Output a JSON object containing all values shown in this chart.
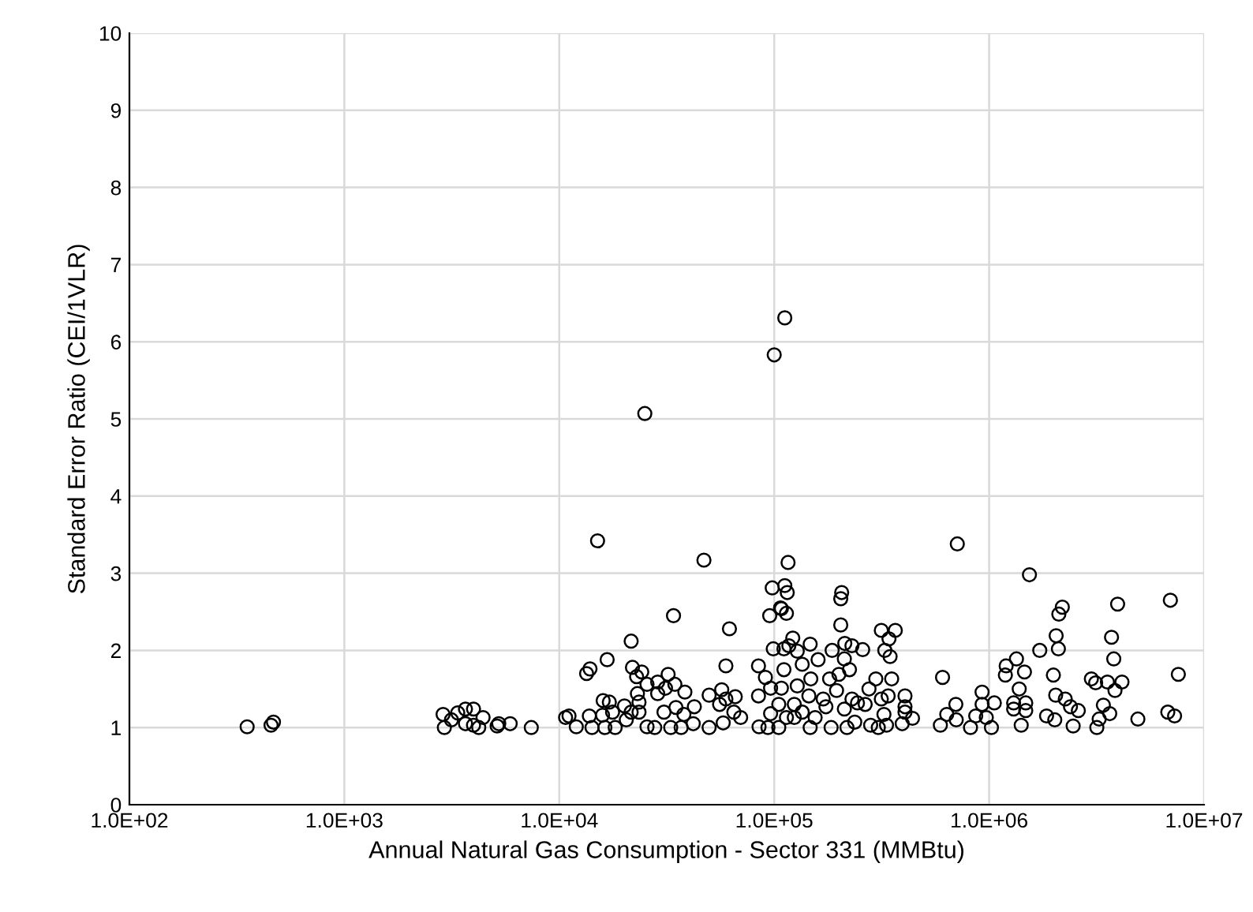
{
  "chart_data": {
    "type": "scatter",
    "xlabel": "Annual Natural Gas Consumption - Sector 331 (MMBtu)",
    "ylabel": "Standard Error Ratio (CEI/1VLR)",
    "log": "x",
    "xlim": [
      100,
      10000000
    ],
    "xticks": [
      {
        "value": 100,
        "label": "1.0E+02"
      },
      {
        "value": 1000,
        "label": "1.0E+03"
      },
      {
        "value": 10000,
        "label": "1.0E+04"
      },
      {
        "value": 100000,
        "label": "1.0E+05"
      },
      {
        "value": 1000000,
        "label": "1.0E+06"
      },
      {
        "value": 10000000,
        "label": "1.0E+07"
      }
    ],
    "ylim": [
      0,
      10
    ],
    "yticks": [
      0,
      1,
      2,
      3,
      4,
      5,
      6,
      7,
      8,
      9,
      10
    ],
    "grid": true,
    "marker": "circle",
    "series": [
      {
        "color": "#000000",
        "x": [
          353,
          456,
          468,
          2880,
          2920,
          3150,
          3370,
          3660,
          3990,
          3660,
          3990,
          4220,
          4420,
          5140,
          5230,
          5910,
          7410,
          10700,
          15070,
          47100,
          34000,
          61900,
          21600,
          16700,
          13400,
          13900,
          21900,
          24200,
          32100,
          59600,
          84500,
          22900,
          25600,
          28700,
          34500,
          31200,
          38400,
          28700,
          23100,
          57000,
          49800,
          65900,
          55700,
          59600,
          42500,
          34900,
          16000,
          17100,
          20100,
          23500,
          23500,
          21600,
          17700,
          11100,
          13800,
          15900,
          30700,
          38000,
          64900,
          69800,
          57900,
          49800,
          12000,
          14200,
          16300,
          18200,
          25600,
          27800,
          33000,
          36900,
          42000,
          20500,
          84500,
          91000,
          96200,
          85000,
          93500,
          96200,
          97900,
          95300,
          107000,
          99000,
          111000,
          116000,
          112000,
          115000,
          108000,
          114000,
          206000,
          204000,
          204000,
          711000,
          315000,
          366000,
          342000,
          327000,
          346000,
          122000,
          117000,
          147000,
          128000,
          186000,
          213000,
          230000,
          258000,
          212000,
          224000,
          160000,
          135000,
          111000,
          148000,
          181000,
          200000,
          297000,
          352000,
          128000,
          108000,
          169000,
          195000,
          230000,
          276000,
          315000,
          339000,
          406000,
          145000,
          124000,
          105000,
          174000,
          212000,
          244000,
          265000,
          406000,
          406000,
          324000,
          155000,
          135000,
          114000,
          105000,
          124000,
          147000,
          184000,
          218000,
          237000,
          281000,
          305000,
          333000,
          394000,
          440000,
          607000,
          593000,
          700000,
          635000,
          703000,
          819000,
          866000,
          927000,
          927000,
          1057000,
          970000,
          1025000,
          1540000,
          2190000,
          2110000,
          3960000,
          6970000,
          2050000,
          2100000,
          1720000,
          3710000,
          3800000,
          1340000,
          1200000,
          1460000,
          7590000,
          1990000,
          2990000,
          3130000,
          3550000,
          4150000,
          3850000,
          1380000,
          2040000,
          2260000,
          2390000,
          2600000,
          1300000,
          1480000,
          1300000,
          1480000,
          3400000,
          3640000,
          3250000,
          1850000,
          2020000,
          1410000,
          2460000,
          3170000,
          4920000,
          6780000,
          7290000,
          1190000,
          112000,
          100000,
          25000
        ],
        "values": [
          1.01,
          1.03,
          1.07,
          1.17,
          1.0,
          1.1,
          1.19,
          1.24,
          1.24,
          1.05,
          1.03,
          1.0,
          1.13,
          1.02,
          1.05,
          1.05,
          1.0,
          1.13,
          3.42,
          3.17,
          2.45,
          2.28,
          2.12,
          1.88,
          1.7,
          1.76,
          1.78,
          1.72,
          1.69,
          1.8,
          1.8,
          1.66,
          1.56,
          1.59,
          1.56,
          1.51,
          1.46,
          1.44,
          1.44,
          1.49,
          1.42,
          1.4,
          1.3,
          1.37,
          1.27,
          1.26,
          1.35,
          1.33,
          1.28,
          1.33,
          1.2,
          1.2,
          1.2,
          1.15,
          1.15,
          1.16,
          1.2,
          1.17,
          1.2,
          1.13,
          1.06,
          1.0,
          1.01,
          1.0,
          1.0,
          1.0,
          1.01,
          1.0,
          1.0,
          1.0,
          1.05,
          1.1,
          1.41,
          1.65,
          1.51,
          1.01,
          1.0,
          1.18,
          2.81,
          2.45,
          2.55,
          2.02,
          2.02,
          3.14,
          2.84,
          2.75,
          2.54,
          2.48,
          2.75,
          2.67,
          2.33,
          3.38,
          2.26,
          2.26,
          2.15,
          2.0,
          1.92,
          2.16,
          2.06,
          2.08,
          1.99,
          2.0,
          2.09,
          2.06,
          2.01,
          1.89,
          1.75,
          1.88,
          1.82,
          1.75,
          1.63,
          1.63,
          1.69,
          1.63,
          1.63,
          1.54,
          1.51,
          1.37,
          1.48,
          1.37,
          1.5,
          1.37,
          1.41,
          1.41,
          1.41,
          1.3,
          1.3,
          1.27,
          1.24,
          1.32,
          1.3,
          1.27,
          1.2,
          1.17,
          1.13,
          1.2,
          1.13,
          1.0,
          1.13,
          1.0,
          1.0,
          1.0,
          1.07,
          1.03,
          1.0,
          1.03,
          1.05,
          1.12,
          1.65,
          1.03,
          1.3,
          1.17,
          1.1,
          1.0,
          1.15,
          1.46,
          1.3,
          1.32,
          1.13,
          1.0,
          2.98,
          2.56,
          2.47,
          2.6,
          2.65,
          2.19,
          2.02,
          2.0,
          2.17,
          1.89,
          1.89,
          1.8,
          1.72,
          1.69,
          1.68,
          1.63,
          1.58,
          1.59,
          1.59,
          1.48,
          1.5,
          1.42,
          1.37,
          1.27,
          1.22,
          1.32,
          1.32,
          1.24,
          1.22,
          1.29,
          1.18,
          1.11,
          1.15,
          1.1,
          1.03,
          1.02,
          1.0,
          1.11,
          1.2,
          1.15,
          1.68,
          6.31,
          5.83,
          5.07
        ]
      }
    ]
  }
}
